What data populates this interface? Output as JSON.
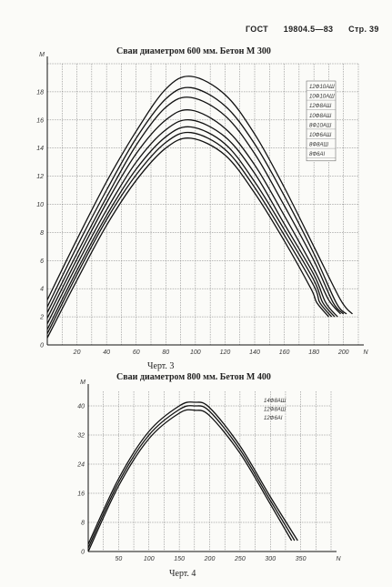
{
  "header": {
    "org": "ГОСТ",
    "number": "19804.5—83",
    "page": "Стр. 39"
  },
  "chart_data": [
    {
      "type": "line",
      "title": "Сваи диаметром 600 мм. Бетон М 300",
      "caption": "Черт. 3",
      "ylabel": "M",
      "xlabel": "N",
      "xlim": [
        0,
        210
      ],
      "ylim": [
        0,
        20
      ],
      "xticks": [
        "20",
        "40",
        "60",
        "80",
        "100",
        "120",
        "140",
        "160",
        "180",
        "200"
      ],
      "yticks": [
        "0",
        "2",
        "4",
        "6",
        "8",
        "10",
        "12",
        "14",
        "16",
        "18"
      ],
      "grid": true,
      "legend": "right",
      "series": [
        {
          "name": "12Ф10АШ",
          "x": [
            0,
            20,
            40,
            60,
            80,
            97,
            120,
            140,
            160,
            180,
            198,
            206
          ],
          "y": [
            3.2,
            7.5,
            11.6,
            15.2,
            18.2,
            19.1,
            17.8,
            15.0,
            11.2,
            7.0,
            3.2,
            2.2
          ]
        },
        {
          "name": "10Ф10АШ",
          "x": [
            0,
            20,
            40,
            60,
            80,
            97,
            120,
            140,
            160,
            180,
            195,
            202
          ],
          "y": [
            2.7,
            7.0,
            11.0,
            14.7,
            17.5,
            18.3,
            17.0,
            14.3,
            10.6,
            6.5,
            3.0,
            2.2
          ]
        },
        {
          "name": "12Ф8АШ",
          "x": [
            0,
            20,
            40,
            60,
            80,
            97,
            120,
            140,
            160,
            180,
            193,
            200
          ],
          "y": [
            2.3,
            6.5,
            10.5,
            14.2,
            16.9,
            17.6,
            16.3,
            13.6,
            9.9,
            6.0,
            3.0,
            2.2
          ]
        },
        {
          "name": "10Ф8АШ",
          "x": [
            0,
            20,
            40,
            60,
            80,
            97,
            120,
            140,
            160,
            180,
            190,
            198
          ],
          "y": [
            1.9,
            6.1,
            10.1,
            13.6,
            16.0,
            16.7,
            15.4,
            12.8,
            9.2,
            5.4,
            3.2,
            2.2
          ]
        },
        {
          "name": "8Ф10АШ",
          "x": [
            0,
            20,
            40,
            60,
            80,
            97,
            120,
            140,
            160,
            180,
            188,
            196
          ],
          "y": [
            1.5,
            5.7,
            9.6,
            13.0,
            15.3,
            16.0,
            14.8,
            12.2,
            8.6,
            5.0,
            3.0,
            2.0
          ]
        },
        {
          "name": "10Ф6АШ",
          "x": [
            0,
            20,
            40,
            60,
            80,
            97,
            120,
            140,
            160,
            180,
            186,
            194
          ],
          "y": [
            1.1,
            5.3,
            9.2,
            12.5,
            14.8,
            15.5,
            14.3,
            11.6,
            8.2,
            4.6,
            3.0,
            2.0
          ]
        },
        {
          "name": "8Ф8АШ",
          "x": [
            0,
            20,
            40,
            60,
            80,
            97,
            120,
            140,
            160,
            180,
            184,
            192
          ],
          "y": [
            0.8,
            5.0,
            8.9,
            12.1,
            14.4,
            15.1,
            13.9,
            11.2,
            7.8,
            4.2,
            3.0,
            2.0
          ]
        },
        {
          "name": "8Ф6АI",
          "x": [
            0,
            20,
            40,
            60,
            80,
            97,
            120,
            140,
            160,
            178,
            182,
            190
          ],
          "y": [
            0.5,
            4.6,
            8.5,
            11.7,
            14.0,
            14.7,
            13.5,
            10.8,
            7.4,
            4.0,
            3.0,
            2.0
          ]
        }
      ]
    },
    {
      "type": "line",
      "title": "Сваи диаметром 800 мм. Бетон М 400",
      "caption": "Черт. 4",
      "ylabel": "M",
      "xlabel": "N",
      "xlim": [
        0,
        400
      ],
      "ylim": [
        0,
        44
      ],
      "xticks": [
        "50",
        "100",
        "150",
        "200",
        "250",
        "300",
        "350"
      ],
      "yticks": [
        "0",
        "8",
        "16",
        "24",
        "32",
        "40"
      ],
      "grid": true,
      "legend": "top-right",
      "series": [
        {
          "name": "14Ф8АШ",
          "x": [
            0,
            50,
            100,
            150,
            175,
            200,
            250,
            300,
            345
          ],
          "y": [
            2,
            20,
            33,
            40,
            41,
            39.5,
            29,
            15,
            3
          ]
        },
        {
          "name": "12Ф8АШ",
          "x": [
            0,
            50,
            100,
            150,
            175,
            200,
            250,
            300,
            340
          ],
          "y": [
            1,
            19,
            32,
            39,
            40,
            38.5,
            28,
            14,
            3
          ]
        },
        {
          "name": "12Ф6АI",
          "x": [
            0,
            50,
            100,
            150,
            175,
            200,
            250,
            300,
            335
          ],
          "y": [
            0,
            18,
            31,
            38,
            38.8,
            37.3,
            27,
            13,
            3
          ]
        }
      ]
    }
  ]
}
